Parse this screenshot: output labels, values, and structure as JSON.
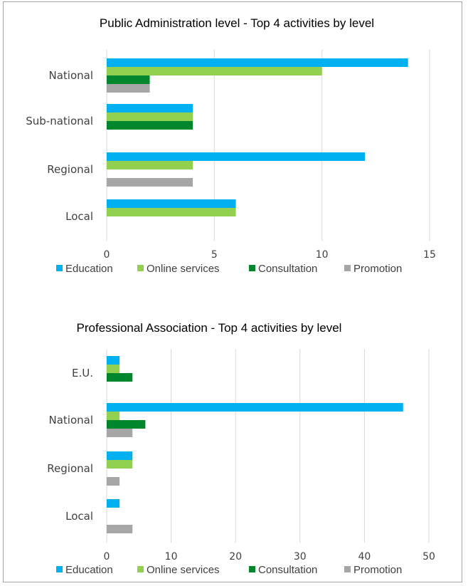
{
  "colors": {
    "Education": "#00b0f0",
    "Online services": "#92d050",
    "Consultation": "#00862d",
    "Promotion": "#a6a6a6"
  },
  "chart_data": [
    {
      "type": "bar",
      "orientation": "horizontal",
      "title": "Public Administration level - Top 4 activities by level",
      "categories": [
        "National",
        "Sub-national",
        "Regional",
        "Local"
      ],
      "series": [
        {
          "name": "Education",
          "values": [
            14,
            4,
            12,
            6
          ]
        },
        {
          "name": "Online services",
          "values": [
            10,
            4,
            4,
            6
          ]
        },
        {
          "name": "Consultation",
          "values": [
            2,
            4,
            0,
            0
          ]
        },
        {
          "name": "Promotion",
          "values": [
            2,
            0,
            4,
            0
          ]
        }
      ],
      "xticks": [
        "0",
        "5",
        "10",
        "15"
      ],
      "xlim": [
        0,
        15
      ],
      "grid": true,
      "legend": "bottom"
    },
    {
      "type": "bar",
      "orientation": "horizontal",
      "title": "Professional Association - Top 4 activities by level",
      "categories": [
        "E.U.",
        "National",
        "Regional",
        "Local"
      ],
      "series": [
        {
          "name": "Education",
          "values": [
            2,
            46,
            4,
            2
          ]
        },
        {
          "name": "Online services",
          "values": [
            2,
            2,
            4,
            0
          ]
        },
        {
          "name": "Consultation",
          "values": [
            4,
            6,
            0,
            0
          ]
        },
        {
          "name": "Promotion",
          "values": [
            0,
            4,
            2,
            4
          ]
        }
      ],
      "xticks": [
        "0",
        "10",
        "20",
        "30",
        "40",
        "50"
      ],
      "xlim": [
        0,
        50
      ],
      "grid": true,
      "legend": "bottom"
    }
  ]
}
